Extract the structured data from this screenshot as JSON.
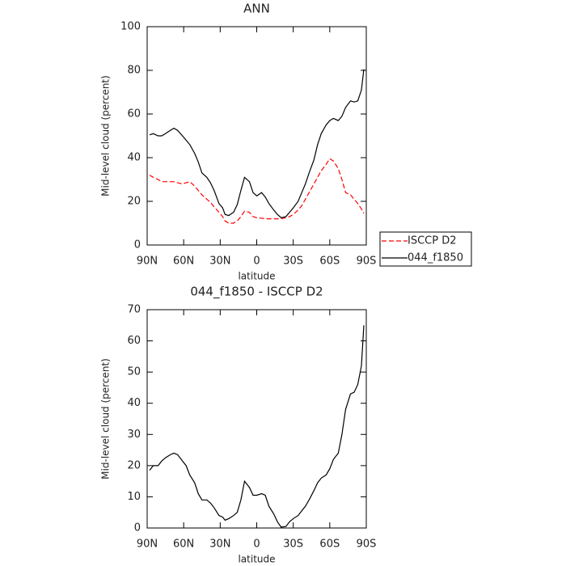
{
  "chart_data": [
    {
      "type": "line",
      "title": "ANN",
      "xlabel": "latitude",
      "ylabel": "Mid-level cloud (percent)",
      "x": [
        88,
        85,
        81,
        78,
        75,
        71,
        68,
        65,
        61,
        58,
        55,
        51,
        48,
        45,
        41,
        38,
        35,
        31,
        28,
        26,
        23,
        19,
        16,
        13,
        10,
        6,
        3,
        0,
        -4,
        -7,
        -10,
        -14,
        -17,
        -20,
        -24,
        -27,
        -30,
        -34,
        -37,
        -40,
        -43,
        -47,
        -50,
        -53,
        -57,
        -60,
        -63,
        -67,
        -70,
        -73,
        -77,
        -80,
        -83,
        -86,
        -88
      ],
      "series": [
        {
          "name": "ISCCP D2",
          "color": "#ff0000",
          "dash": "dashed",
          "values": [
            32,
            31,
            30,
            29,
            29,
            29,
            29,
            28.5,
            28,
            28.5,
            29,
            27,
            25,
            23,
            21,
            19.5,
            17.5,
            15,
            13,
            11,
            10,
            10,
            11,
            13,
            15.5,
            15,
            13,
            12.5,
            12.3,
            12,
            12,
            12,
            12,
            12,
            12.5,
            13,
            14,
            16,
            18,
            21,
            24,
            28,
            31,
            34,
            37,
            39.5,
            38.5,
            35,
            30,
            24,
            23,
            21,
            19,
            16.5,
            14.5
          ]
        },
        {
          "name": "044_f1850",
          "color": "#000000",
          "dash": "solid",
          "values": [
            50.5,
            51,
            50,
            50,
            51,
            52.5,
            53.5,
            52.5,
            50,
            48,
            46,
            42,
            38,
            33,
            31,
            28.5,
            25,
            19,
            17,
            14,
            13.5,
            15,
            18.5,
            25,
            31,
            29,
            24,
            22.5,
            24,
            22,
            19,
            16,
            14,
            12.5,
            13,
            15,
            17,
            20,
            24,
            28,
            33,
            39,
            46,
            51,
            55,
            57,
            58,
            57,
            59,
            63,
            66,
            65.5,
            66,
            71,
            80.5
          ]
        }
      ],
      "xlim": [
        90,
        -90
      ],
      "xticks": [
        {
          "value": 90,
          "label": "90N"
        },
        {
          "value": 60,
          "label": "60N"
        },
        {
          "value": 30,
          "label": "30N"
        },
        0,
        {
          "value": -30,
          "label": "30S"
        },
        {
          "value": -60,
          "label": "60S"
        },
        {
          "value": -90,
          "label": "90S"
        }
      ],
      "ylim": [
        0,
        100
      ],
      "yticks": [
        0,
        20,
        40,
        60,
        80,
        100
      ],
      "legend": "right"
    },
    {
      "type": "line",
      "title": "044_f1850 - ISCCP D2",
      "xlabel": "latitude",
      "ylabel": "Mid-level cloud (percent)",
      "x": [
        88,
        85,
        81,
        78,
        75,
        71,
        68,
        65,
        61,
        58,
        55,
        51,
        48,
        45,
        41,
        38,
        35,
        31,
        28,
        26,
        23,
        19,
        16,
        13,
        10,
        6,
        3,
        0,
        -4,
        -7,
        -10,
        -14,
        -17,
        -20,
        -24,
        -27,
        -30,
        -34,
        -37,
        -40,
        -43,
        -47,
        -50,
        -53,
        -57,
        -60,
        -63,
        -67,
        -70,
        -73,
        -77,
        -80,
        -83,
        -86,
        -88
      ],
      "series": [
        {
          "color": "#000000",
          "dash": "solid",
          "values": [
            18.5,
            20,
            20,
            21.5,
            22.5,
            23.5,
            24,
            23.5,
            21.5,
            20,
            17,
            14.5,
            11,
            9,
            9,
            8,
            6.5,
            4,
            3.5,
            2.5,
            3,
            4,
            5,
            9,
            15,
            13,
            10.5,
            10.5,
            11,
            10.5,
            7,
            4.5,
            2,
            0.3,
            0.5,
            2,
            3,
            4,
            5.5,
            7,
            9,
            12,
            14.5,
            16,
            17,
            19,
            22,
            24,
            30,
            38,
            43,
            43.5,
            46,
            52,
            65
          ]
        }
      ],
      "xlim": [
        90,
        -90
      ],
      "xticks": [
        {
          "value": 90,
          "label": "90N"
        },
        {
          "value": 60,
          "label": "60N"
        },
        {
          "value": 30,
          "label": "30N"
        },
        0,
        {
          "value": -30,
          "label": "30S"
        },
        {
          "value": -60,
          "label": "60S"
        },
        {
          "value": -90,
          "label": "90S"
        }
      ],
      "ylim": [
        0,
        70
      ],
      "yticks": [
        0,
        10,
        20,
        30,
        40,
        50,
        60,
        70
      ]
    }
  ]
}
